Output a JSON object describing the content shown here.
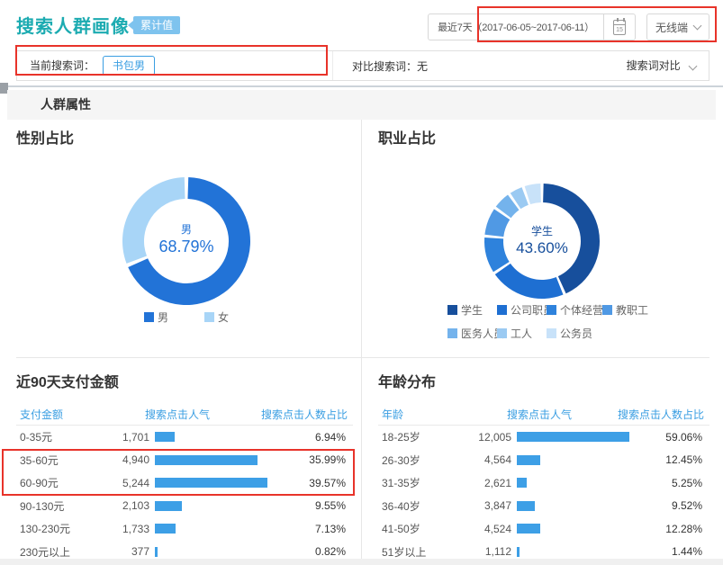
{
  "page": {
    "title": "搜索人群画像",
    "title_badge": "累计值"
  },
  "header": {
    "date_range": "最近7天（2017-06-05~2017-06-11）",
    "calendar_icon_day": "15",
    "terminal_dropdown": "无线端"
  },
  "search_bar": {
    "current_label": "当前搜索词：",
    "current_term": "书包男",
    "compare_text": "对比搜索词：无",
    "compare_dropdown": "搜索词对比"
  },
  "sections": {
    "attributes": "人群属性"
  },
  "colors": {
    "accent_teal": "#1cabb1",
    "accent_blue": "#3a9ee2",
    "bar_fill": "#3d9fe6",
    "annotation_red": "#e8332a"
  },
  "chart_data": [
    {
      "type": "pie",
      "id": "gender",
      "title": "性别占比",
      "center_label": "男",
      "center_value": "68.79%",
      "legend_position": "bottom",
      "labels": [
        "男",
        "女"
      ],
      "values": [
        68.79,
        31.21
      ],
      "colors": [
        "#2273d7",
        "#a8d5f7"
      ]
    },
    {
      "type": "pie",
      "id": "occupation",
      "title": "职业占比",
      "center_label": "学生",
      "center_value": "43.60%",
      "legend_position": "bottom",
      "labels": [
        "学生",
        "公司职员",
        "个体经营/",
        "教职工",
        "医务人员",
        "工人",
        "公务员"
      ],
      "values": [
        43.6,
        22.0,
        10.8,
        8.4,
        5.5,
        4.4,
        5.3
      ],
      "values_note": "only 学生 43.60% is labeled on screen; other slice values estimated from arc angles",
      "colors": [
        "#174f9c",
        "#1e6fd2",
        "#2e82dc",
        "#5099e4",
        "#74b3ec",
        "#9bcaf2",
        "#c8e2f9"
      ]
    },
    {
      "type": "table",
      "id": "pay",
      "title": "近90天支付金额",
      "columns": [
        "支付金额",
        "搜索点击人气",
        "搜索点击人数占比"
      ],
      "bar_metric": "搜索点击人数占比",
      "rows": [
        {
          "label": "0-35元",
          "value": "1,701",
          "pct": "6.94%"
        },
        {
          "label": "35-60元",
          "value": "4,940",
          "pct": "35.99%"
        },
        {
          "label": "60-90元",
          "value": "5,244",
          "pct": "39.57%"
        },
        {
          "label": "90-130元",
          "value": "2,103",
          "pct": "9.55%"
        },
        {
          "label": "130-230元",
          "value": "1,733",
          "pct": "7.13%"
        },
        {
          "label": "230元以上",
          "value": "377",
          "pct": "0.82%"
        }
      ]
    },
    {
      "type": "table",
      "id": "age",
      "title": "年龄分布",
      "columns": [
        "年龄",
        "搜索点击人气",
        "搜索点击人数占比"
      ],
      "bar_metric": "搜索点击人数占比",
      "rows": [
        {
          "label": "18-25岁",
          "value": "12,005",
          "pct": "59.06%"
        },
        {
          "label": "26-30岁",
          "value": "4,564",
          "pct": "12.45%"
        },
        {
          "label": "31-35岁",
          "value": "2,621",
          "pct": "5.25%"
        },
        {
          "label": "36-40岁",
          "value": "3,847",
          "pct": "9.52%"
        },
        {
          "label": "41-50岁",
          "value": "4,524",
          "pct": "12.28%"
        },
        {
          "label": "51岁以上",
          "value": "1,112",
          "pct": "1.44%"
        }
      ]
    }
  ]
}
